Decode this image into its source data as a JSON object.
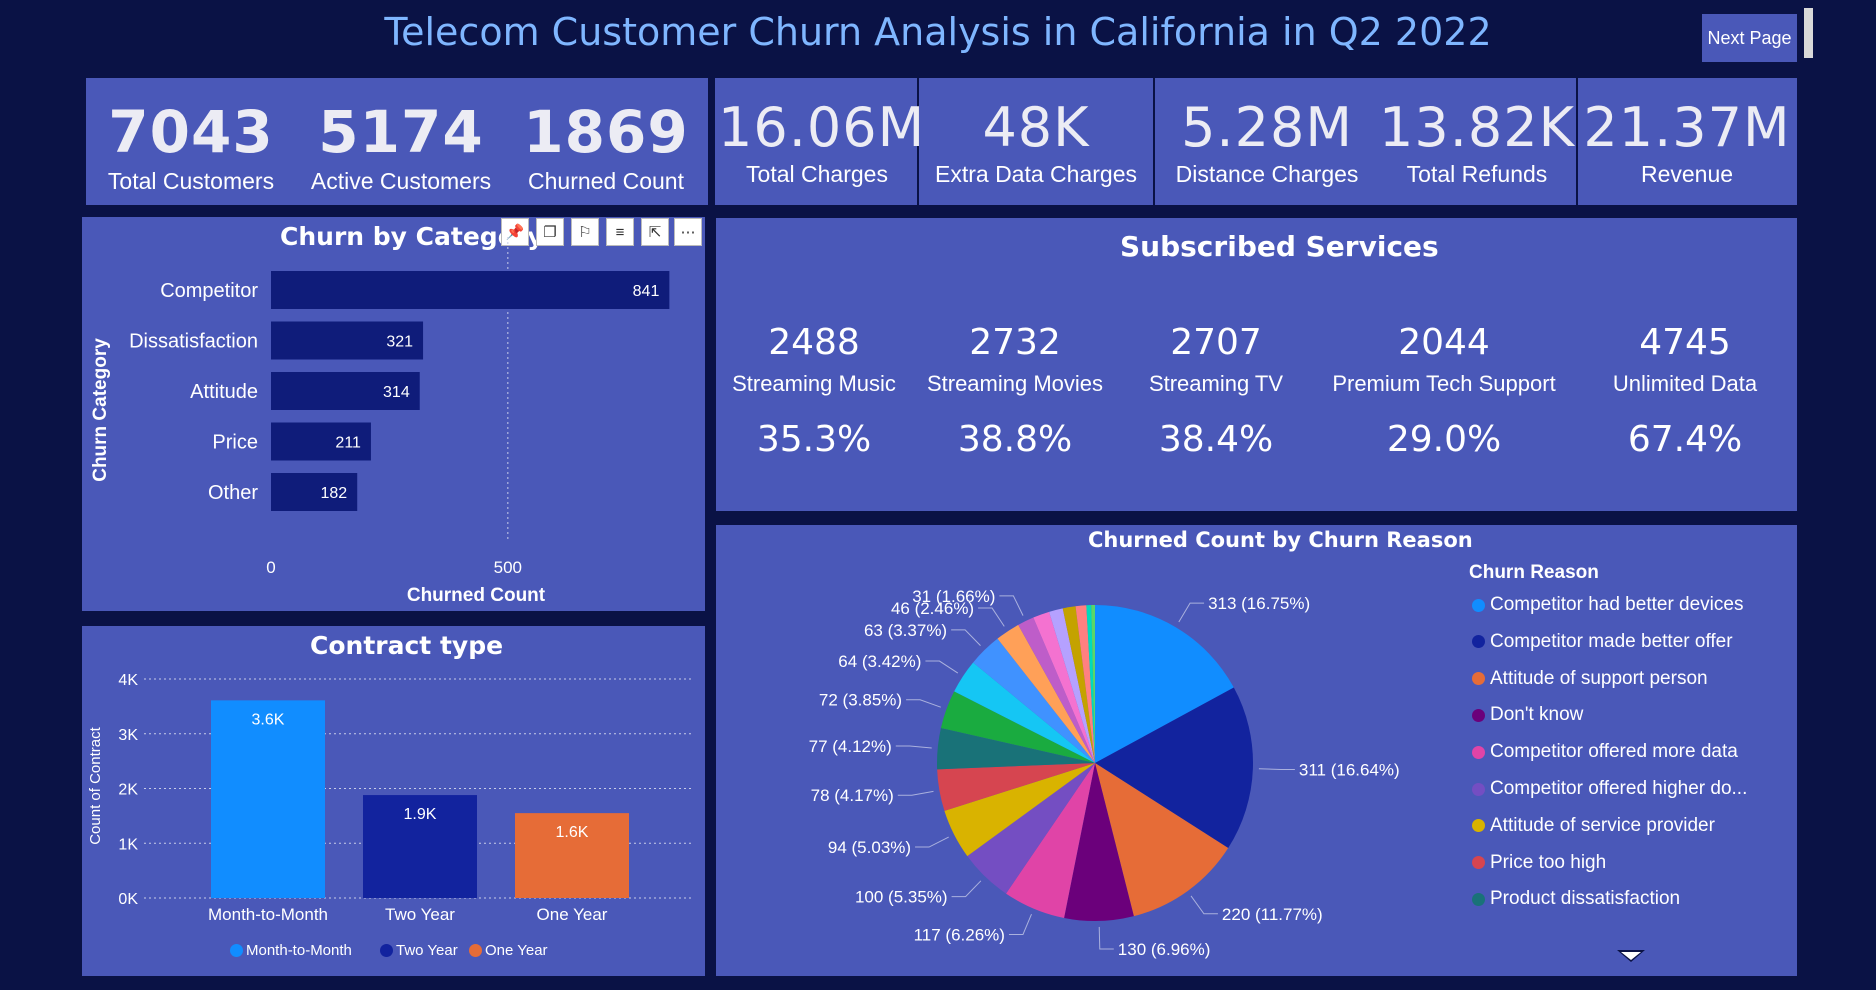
{
  "header": {
    "title": "Telecom Customer Churn Analysis in California in Q2 2022",
    "next_page_label": "Next Page"
  },
  "kpis_left": [
    {
      "value": "7043",
      "label": "Total Customers"
    },
    {
      "value": "5174",
      "label": "Active Customers"
    },
    {
      "value": "1869",
      "label": "Churned Count"
    }
  ],
  "kpis_right": [
    {
      "value": "16.06M",
      "label": "Total Charges"
    },
    {
      "value": "48K",
      "label": "Extra Data Charges"
    },
    {
      "value": "5.28M",
      "label": "Distance Charges"
    },
    {
      "value": "13.82K",
      "label": "Total Refunds"
    },
    {
      "value": "21.37M",
      "label": "Revenue"
    }
  ],
  "services": {
    "title": "Subscribed Services",
    "items": [
      {
        "count": "2488",
        "name": "Streaming Music",
        "pct": "35.3%"
      },
      {
        "count": "2732",
        "name": "Streaming Movies",
        "pct": "38.8%"
      },
      {
        "count": "2707",
        "name": "Streaming TV",
        "pct": "38.4%"
      },
      {
        "count": "2044",
        "name": "Premium Tech Support",
        "pct": "29.0%"
      },
      {
        "count": "4745",
        "name": "Unlimited Data",
        "pct": "67.4%"
      }
    ]
  },
  "toolbar_icons": [
    "pin-icon",
    "copy-icon",
    "bell-icon",
    "filter-icon",
    "focus-mode-icon",
    "more-options-icon"
  ],
  "chart_data": [
    {
      "type": "bar",
      "orientation": "horizontal",
      "title": "Churn by Category",
      "xlabel": "Churned Count",
      "ylabel": "Churn Category",
      "categories": [
        "Competitor",
        "Dissatisfaction",
        "Attitude",
        "Price",
        "Other"
      ],
      "values": [
        841,
        321,
        314,
        211,
        182
      ],
      "xlim": [
        0,
        950
      ],
      "xticks": [
        0,
        500
      ],
      "color": "#0f1c7a",
      "grid": true
    },
    {
      "type": "bar",
      "title": "Contract type",
      "ylabel": "Count of Contract",
      "categories": [
        "Month-to-Month",
        "Two Year",
        "One Year"
      ],
      "values": [
        3610,
        1880,
        1550
      ],
      "data_labels": [
        "3.6K",
        "1.9K",
        "1.6K"
      ],
      "colors": [
        "#118dff",
        "#12239e",
        "#e66c37"
      ],
      "ylim": [
        0,
        4000
      ],
      "yticks": [
        "0K",
        "1K",
        "2K",
        "3K",
        "4K"
      ],
      "legend": [
        "Month-to-Month",
        "Two Year",
        "One Year"
      ],
      "legend_position": "bottom",
      "grid": true
    },
    {
      "type": "pie",
      "title": "Churned Count by Churn Reason",
      "legend_title": "Churn Reason",
      "legend_position": "right",
      "legend_visible": [
        "Competitor had better devices",
        "Competitor made better offer",
        "Attitude of support person",
        "Don't know",
        "Competitor offered more data",
        "Competitor offered higher do...",
        "Attitude of service provider",
        "Price too high",
        "Product dissatisfaction"
      ],
      "slices": [
        {
          "value": 313,
          "label": "313 (16.75%)",
          "color": "#118dff"
        },
        {
          "value": 311,
          "label": "311 (16.64%)",
          "color": "#12239e"
        },
        {
          "value": 220,
          "label": "220 (11.77%)",
          "color": "#e66c37"
        },
        {
          "value": 130,
          "label": "130 (6.96%)",
          "color": "#6b007b"
        },
        {
          "value": 117,
          "label": "117 (6.26%)",
          "color": "#e044a7"
        },
        {
          "value": 100,
          "label": "100 (5.35%)",
          "color": "#744ec2"
        },
        {
          "value": 94,
          "label": "94 (5.03%)",
          "color": "#d9b300"
        },
        {
          "value": 78,
          "label": "78 (4.17%)",
          "color": "#d64550"
        },
        {
          "value": 77,
          "label": "77 (4.12%)",
          "color": "#197278"
        },
        {
          "value": 72,
          "label": "72 (3.85%)",
          "color": "#1aab40"
        },
        {
          "value": 64,
          "label": "64 (3.42%)",
          "color": "#15c6f4"
        },
        {
          "value": 63,
          "label": "63 (3.37%)",
          "color": "#4092ff"
        },
        {
          "value": 46,
          "label": "46 (2.46%)",
          "color": "#ffa058"
        },
        {
          "value": 31,
          "label": "31 (1.66%)",
          "color": "#be5dc9"
        },
        {
          "value": 31,
          "label": "",
          "color": "#f472d0"
        },
        {
          "value": 26,
          "label": "",
          "color": "#b5a1ff"
        },
        {
          "value": 24,
          "label": "",
          "color": "#c4a200"
        },
        {
          "value": 20,
          "label": "",
          "color": "#ff8080"
        },
        {
          "value": 9,
          "label": "",
          "color": "#00dbbc"
        },
        {
          "value": 7,
          "label": "",
          "color": "#5bd667"
        }
      ]
    }
  ]
}
